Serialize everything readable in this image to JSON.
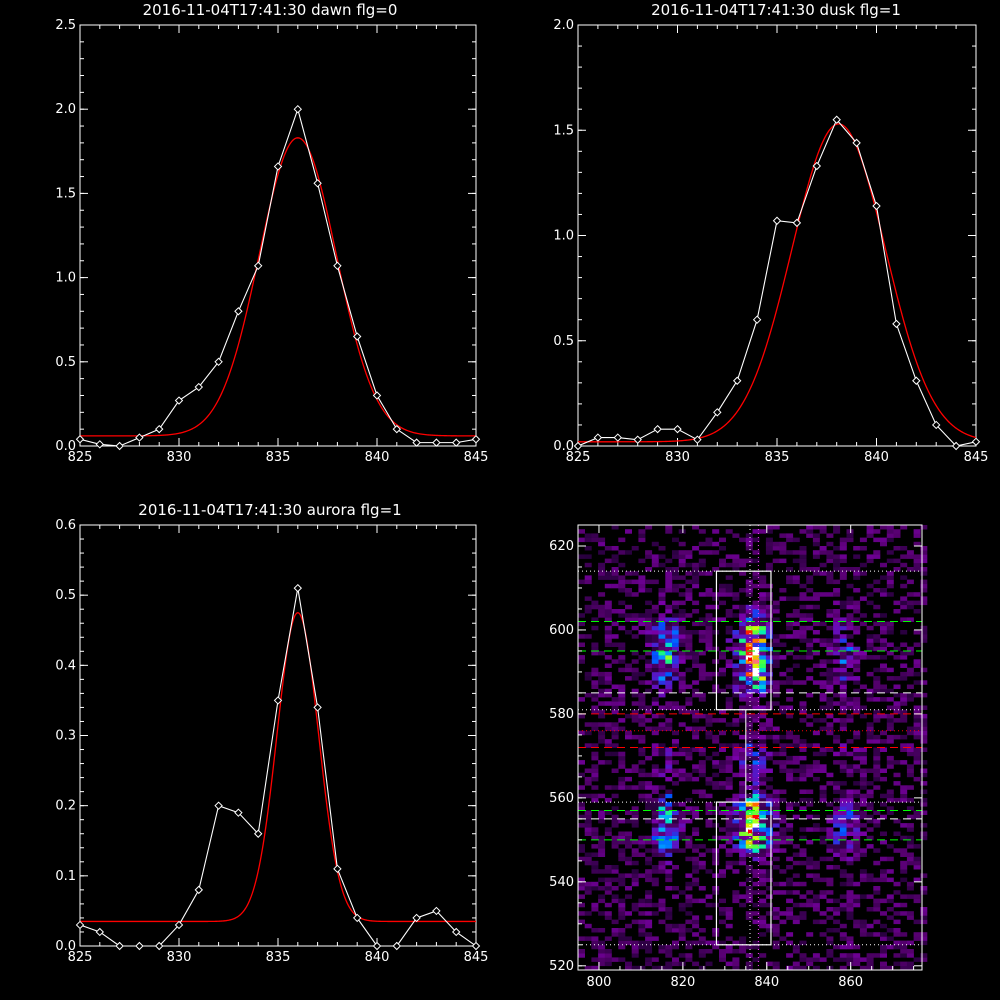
{
  "panels": {
    "p1_title": "2016-11-04T17:41:30 dawn flg=0",
    "p2_title": "2016-11-04T17:41:30 dusk flg=1",
    "p3_title": "2016-11-04T17:41:30 aurora flg=1"
  },
  "chart_data": [
    {
      "type": "line",
      "title": "2016-11-04T17:41:30 dawn flg=0",
      "xlim": [
        825,
        845
      ],
      "ylim": [
        0,
        2.5
      ],
      "xticks": [
        825,
        830,
        835,
        840,
        845
      ],
      "yticks": [
        0.0,
        0.5,
        1.0,
        1.5,
        2.0,
        2.5
      ],
      "ytick_labels": [
        "0.0",
        "0.5",
        "1.0",
        "1.5",
        "2.0",
        "2.5"
      ],
      "grid": false,
      "series": [
        {
          "kind": "data",
          "color": "#ffffff",
          "marker": "diamond",
          "x": [
            825,
            826,
            827,
            828,
            829,
            830,
            831,
            832,
            833,
            834,
            835,
            836,
            837,
            838,
            839,
            840,
            841,
            842,
            843,
            844,
            845
          ],
          "y": [
            0.04,
            0.01,
            0.0,
            0.05,
            0.1,
            0.27,
            0.35,
            0.5,
            0.8,
            1.07,
            1.66,
            2.0,
            1.56,
            1.07,
            0.65,
            0.3,
            0.1,
            0.02,
            0.02,
            0.02,
            0.04
          ]
        },
        {
          "kind": "fit",
          "color": "#ff0000",
          "gauss": {
            "base": 0.06,
            "amp": 1.77,
            "center": 836.0,
            "sigma": 1.95
          }
        }
      ]
    },
    {
      "type": "line",
      "title": "2016-11-04T17:41:30 dusk flg=1",
      "xlim": [
        825,
        845
      ],
      "ylim": [
        0,
        2.0
      ],
      "xticks": [
        825,
        830,
        835,
        840,
        845
      ],
      "yticks": [
        0.0,
        0.5,
        1.0,
        1.5,
        2.0
      ],
      "ytick_labels": [
        "0.0",
        "0.5",
        "1.0",
        "1.5",
        "2.0"
      ],
      "grid": false,
      "series": [
        {
          "kind": "data",
          "color": "#ffffff",
          "marker": "diamond",
          "x": [
            825,
            826,
            827,
            828,
            829,
            830,
            831,
            832,
            833,
            834,
            835,
            836,
            837,
            838,
            839,
            840,
            841,
            842,
            843,
            844,
            845
          ],
          "y": [
            0.0,
            0.04,
            0.04,
            0.03,
            0.08,
            0.08,
            0.03,
            0.16,
            0.31,
            0.6,
            1.07,
            1.06,
            1.33,
            1.55,
            1.44,
            1.14,
            0.58,
            0.31,
            0.1,
            0.0,
            0.02
          ]
        },
        {
          "kind": "fit",
          "color": "#ff0000",
          "gauss": {
            "base": 0.02,
            "amp": 1.51,
            "center": 838.1,
            "sigma": 2.35
          }
        }
      ]
    },
    {
      "type": "line",
      "title": "2016-11-04T17:41:30 aurora flg=1",
      "xlim": [
        825,
        845
      ],
      "ylim": [
        0,
        0.6
      ],
      "xticks": [
        825,
        830,
        835,
        840,
        845
      ],
      "yticks": [
        0.0,
        0.1,
        0.2,
        0.3,
        0.4,
        0.5,
        0.6
      ],
      "ytick_labels": [
        "0.0",
        "0.1",
        "0.2",
        "0.3",
        "0.4",
        "0.5",
        "0.6"
      ],
      "grid": false,
      "series": [
        {
          "kind": "data",
          "color": "#ffffff",
          "marker": "diamond",
          "x": [
            825,
            826,
            827,
            828,
            829,
            830,
            831,
            832,
            833,
            834,
            835,
            836,
            837,
            838,
            839,
            840,
            841,
            842,
            843,
            844,
            845
          ],
          "y": [
            0.03,
            0.02,
            0.0,
            0.0,
            0.0,
            0.03,
            0.08,
            0.2,
            0.19,
            0.16,
            0.35,
            0.51,
            0.34,
            0.11,
            0.04,
            0.0,
            0.0,
            0.04,
            0.05,
            0.02,
            0.0
          ]
        },
        {
          "kind": "fit",
          "color": "#ff0000",
          "gauss": {
            "base": 0.035,
            "amp": 0.44,
            "center": 836.0,
            "sigma": 1.05
          }
        }
      ]
    },
    {
      "type": "heatmap",
      "xlim": [
        795,
        877
      ],
      "ylim": [
        519,
        625
      ],
      "xticks": [
        800,
        820,
        840,
        860
      ],
      "yticks": [
        520,
        540,
        560,
        580,
        600,
        620
      ],
      "grid": false,
      "colormap": [
        "#000000",
        "#2a0040",
        "#55006e",
        "#7a00a8",
        "#4a1fd0",
        "#0050ff",
        "#00a8ff",
        "#00e8c0",
        "#30ff50",
        "#d8ff00",
        "#ff8000",
        "#ff0000",
        "#ffffff"
      ],
      "columns": [
        {
          "center": 815,
          "sigma_x": 2.2,
          "weight": 0.55
        },
        {
          "center": 836,
          "sigma_x": 2.6,
          "weight": 1.0
        },
        {
          "center": 858,
          "sigma_x": 2.2,
          "weight": 0.3
        }
      ],
      "blobs": [
        {
          "center_y": 594,
          "half_height": 11,
          "weight": 1.0
        },
        {
          "center_y": 553,
          "half_height": 9,
          "weight": 0.95
        },
        {
          "center_y": 569,
          "half_height": 6,
          "weight": 0.25
        }
      ],
      "peaks": [
        {
          "x": 836,
          "y": 593
        },
        {
          "x": 836,
          "y": 552
        }
      ],
      "boxes": [
        {
          "x": [
            828,
            841
          ],
          "y": [
            581,
            614
          ],
          "color": "#ffffff"
        },
        {
          "x": [
            828,
            841
          ],
          "y": [
            525,
            559
          ],
          "color": "#ffffff"
        }
      ],
      "vlines": [
        {
          "x": 836,
          "color": "#ffffff",
          "style": "dotted"
        },
        {
          "x": 838,
          "color": "#ff40ff",
          "style": "dotted"
        },
        {
          "x": 835,
          "color": "#ffffff",
          "style": "solid",
          "y": [
            559,
            581
          ]
        }
      ],
      "hlines": [
        {
          "y": 614,
          "color": "#ffffff",
          "style": "dotted"
        },
        {
          "y": 602,
          "color": "#00ff00",
          "style": "dashed"
        },
        {
          "y": 595,
          "color": "#00ff00",
          "style": "dashed"
        },
        {
          "y": 585,
          "color": "#ffffff",
          "style": "dashed"
        },
        {
          "y": 581,
          "color": "#ffffff",
          "style": "dotted"
        },
        {
          "y": 580,
          "color": "#ff0000",
          "style": "dashed"
        },
        {
          "y": 576,
          "color": "#ff0000",
          "style": "dotted"
        },
        {
          "y": 572,
          "color": "#ff0000",
          "style": "dashed"
        },
        {
          "y": 559,
          "color": "#ffffff",
          "style": "dotted"
        },
        {
          "y": 557,
          "color": "#00ff00",
          "style": "dashed"
        },
        {
          "y": 555,
          "color": "#ffffff",
          "style": "dashed"
        },
        {
          "y": 550,
          "color": "#00ff00",
          "style": "dashed"
        },
        {
          "y": 525,
          "color": "#ffffff",
          "style": "dotted"
        }
      ]
    }
  ]
}
